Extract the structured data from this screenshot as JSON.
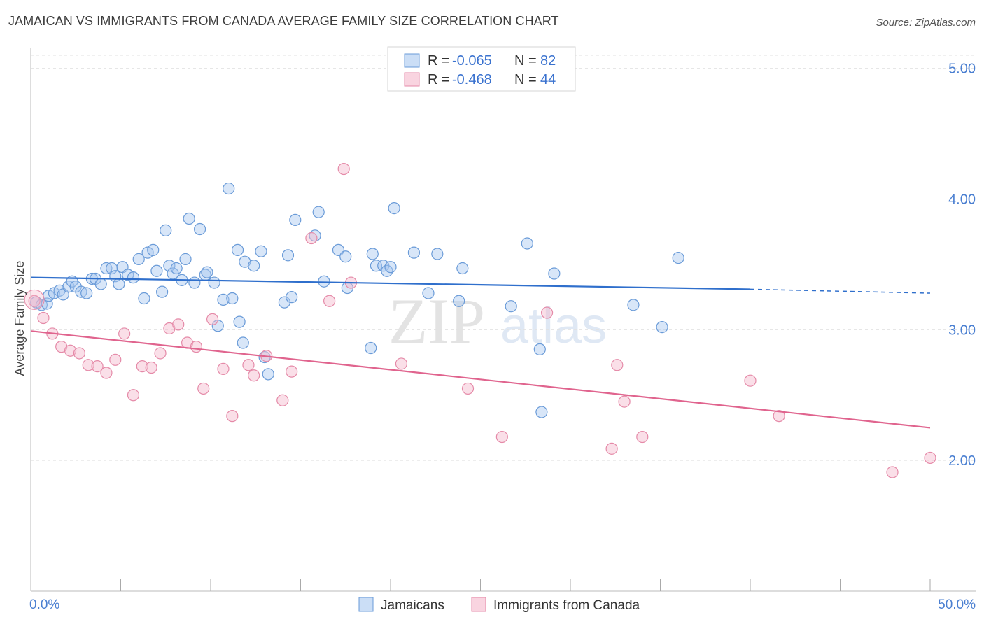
{
  "chart_data": {
    "type": "scatter",
    "title": "JAMAICAN VS IMMIGRANTS FROM CANADA AVERAGE FAMILY SIZE CORRELATION CHART",
    "source": "Source: ZipAtlas.com",
    "xlabel": "",
    "ylabel": "Average Family Size",
    "xlim": [
      0,
      50
    ],
    "ylim": [
      1.0,
      5.1
    ],
    "x_tick_labels": [
      "0.0%",
      "50.0%"
    ],
    "y_ticks": [
      2.0,
      3.0,
      4.0,
      5.0
    ],
    "y_tick_labels": [
      "2.00",
      "3.00",
      "4.00",
      "5.00"
    ],
    "watermark": "ZIPatlas",
    "colors": {
      "jamaicans_fill": "#a8c8f0",
      "jamaicans_stroke": "#6a9bd8",
      "jamaicans_line": "#2f6fcc",
      "canada_fill": "#f5b8cb",
      "canada_stroke": "#e58aa8",
      "canada_line": "#e0648e"
    },
    "legend": {
      "rows": [
        {
          "r_label": "R =",
          "r_value": "-0.065",
          "n_label": "N =",
          "n_value": "82"
        },
        {
          "r_label": "R =",
          "r_value": "-0.468",
          "n_label": "N =",
          "n_value": "44"
        }
      ]
    },
    "series": [
      {
        "name": "Jamaicans",
        "trend": {
          "x0": 0,
          "y0": 3.4,
          "x1": 40,
          "y1": 3.31,
          "dash_to_x": 50,
          "dash_to_y": 3.28
        },
        "points": [
          [
            0.3,
            3.21
          ],
          [
            0.6,
            3.19
          ],
          [
            0.9,
            3.2
          ],
          [
            1.0,
            3.26
          ],
          [
            1.3,
            3.28
          ],
          [
            1.6,
            3.3
          ],
          [
            1.8,
            3.27
          ],
          [
            2.1,
            3.33
          ],
          [
            2.3,
            3.37
          ],
          [
            2.5,
            3.33
          ],
          [
            2.8,
            3.29
          ],
          [
            3.1,
            3.28
          ],
          [
            3.4,
            3.39
          ],
          [
            3.6,
            3.39
          ],
          [
            3.9,
            3.35
          ],
          [
            4.2,
            3.47
          ],
          [
            4.5,
            3.47
          ],
          [
            4.7,
            3.41
          ],
          [
            4.9,
            3.35
          ],
          [
            5.1,
            3.48
          ],
          [
            5.4,
            3.42
          ],
          [
            5.7,
            3.4
          ],
          [
            6.0,
            3.54
          ],
          [
            6.3,
            3.24
          ],
          [
            6.5,
            3.59
          ],
          [
            6.8,
            3.61
          ],
          [
            7.0,
            3.45
          ],
          [
            7.3,
            3.29
          ],
          [
            7.5,
            3.76
          ],
          [
            7.7,
            3.49
          ],
          [
            7.9,
            3.43
          ],
          [
            8.1,
            3.47
          ],
          [
            8.4,
            3.38
          ],
          [
            8.6,
            3.54
          ],
          [
            8.8,
            3.85
          ],
          [
            9.1,
            3.36
          ],
          [
            9.4,
            3.77
          ],
          [
            9.7,
            3.42
          ],
          [
            9.8,
            3.44
          ],
          [
            10.2,
            3.36
          ],
          [
            10.4,
            3.03
          ],
          [
            10.7,
            3.23
          ],
          [
            11.0,
            4.08
          ],
          [
            11.2,
            3.24
          ],
          [
            11.5,
            3.61
          ],
          [
            11.6,
            3.06
          ],
          [
            11.8,
            2.9
          ],
          [
            11.9,
            3.52
          ],
          [
            12.4,
            3.49
          ],
          [
            12.8,
            3.6
          ],
          [
            13.0,
            2.79
          ],
          [
            13.2,
            2.66
          ],
          [
            14.1,
            3.21
          ],
          [
            14.3,
            3.57
          ],
          [
            14.5,
            3.25
          ],
          [
            14.7,
            3.84
          ],
          [
            15.8,
            3.72
          ],
          [
            16.0,
            3.9
          ],
          [
            16.3,
            3.37
          ],
          [
            17.1,
            3.61
          ],
          [
            17.5,
            3.56
          ],
          [
            17.6,
            3.32
          ],
          [
            18.9,
            2.86
          ],
          [
            19.0,
            3.58
          ],
          [
            19.2,
            3.49
          ],
          [
            19.6,
            3.49
          ],
          [
            19.8,
            3.45
          ],
          [
            20.0,
            3.48
          ],
          [
            20.2,
            3.93
          ],
          [
            21.3,
            3.59
          ],
          [
            22.6,
            3.58
          ],
          [
            23.8,
            3.22
          ],
          [
            24.0,
            3.47
          ],
          [
            26.7,
            3.18
          ],
          [
            27.6,
            3.66
          ],
          [
            28.3,
            2.85
          ],
          [
            28.4,
            2.37
          ],
          [
            35.1,
            3.02
          ],
          [
            33.5,
            3.19
          ],
          [
            29.1,
            3.43
          ],
          [
            36.0,
            3.55
          ],
          [
            22.1,
            3.28
          ]
        ]
      },
      {
        "name": "Immigrants from Canada",
        "trend": {
          "x0": 0,
          "y0": 2.99,
          "x1": 50,
          "y1": 2.25
        },
        "points": [
          [
            0.2,
            3.22
          ],
          [
            0.7,
            3.09
          ],
          [
            1.2,
            2.97
          ],
          [
            1.7,
            2.87
          ],
          [
            2.2,
            2.84
          ],
          [
            2.7,
            2.82
          ],
          [
            3.2,
            2.73
          ],
          [
            3.7,
            2.72
          ],
          [
            4.2,
            2.67
          ],
          [
            4.7,
            2.77
          ],
          [
            5.2,
            2.97
          ],
          [
            5.7,
            2.5
          ],
          [
            6.2,
            2.72
          ],
          [
            6.7,
            2.71
          ],
          [
            7.2,
            2.82
          ],
          [
            7.7,
            3.01
          ],
          [
            8.2,
            3.04
          ],
          [
            8.7,
            2.9
          ],
          [
            9.2,
            2.87
          ],
          [
            9.6,
            2.55
          ],
          [
            10.1,
            3.08
          ],
          [
            10.7,
            2.7
          ],
          [
            11.2,
            2.34
          ],
          [
            12.1,
            2.73
          ],
          [
            12.4,
            2.65
          ],
          [
            13.1,
            2.8
          ],
          [
            14.0,
            2.46
          ],
          [
            14.5,
            2.68
          ],
          [
            15.6,
            3.7
          ],
          [
            16.6,
            3.22
          ],
          [
            17.4,
            4.23
          ],
          [
            17.8,
            3.36
          ],
          [
            20.6,
            2.74
          ],
          [
            24.3,
            2.55
          ],
          [
            26.2,
            2.18
          ],
          [
            28.7,
            3.13
          ],
          [
            32.3,
            2.09
          ],
          [
            32.6,
            2.73
          ],
          [
            33.0,
            2.45
          ],
          [
            34.0,
            2.18
          ],
          [
            40.0,
            2.61
          ],
          [
            41.6,
            2.34
          ],
          [
            47.9,
            1.91
          ],
          [
            50.0,
            2.02
          ]
        ]
      }
    ]
  },
  "bottom_legend": [
    "Jamaicans",
    "Immigrants from Canada"
  ]
}
